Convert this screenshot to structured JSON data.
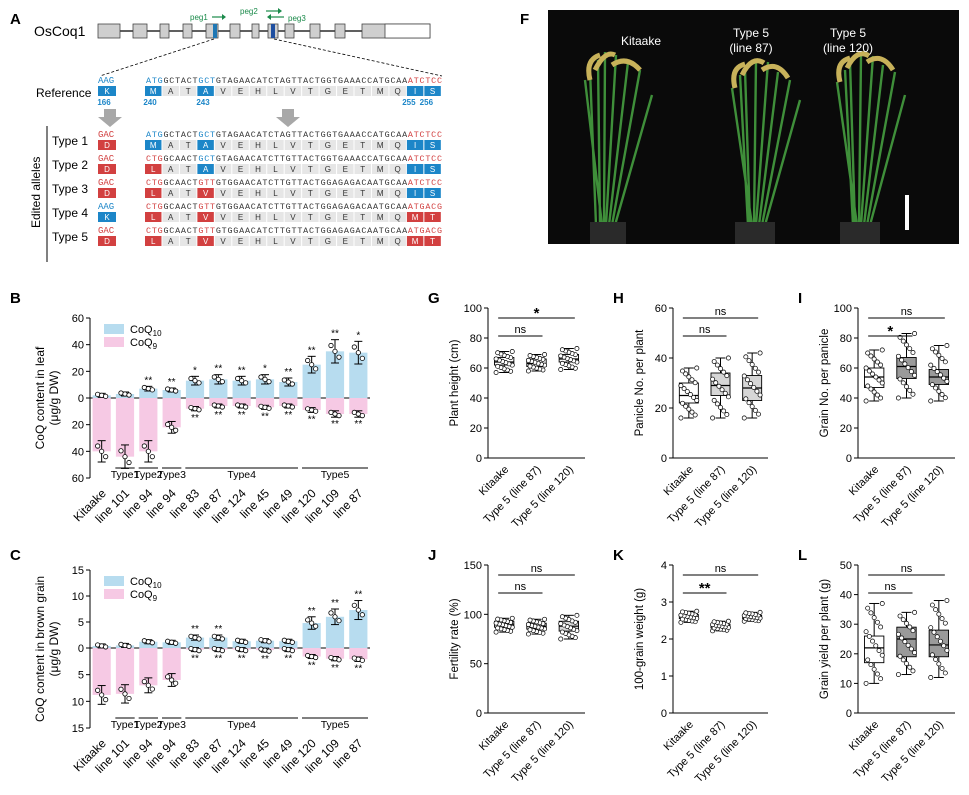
{
  "panel_letters": [
    "A",
    "B",
    "C",
    "F",
    "G",
    "H",
    "I",
    "J",
    "K",
    "L"
  ],
  "panel_a": {
    "gene": "OsCoq1",
    "primers": [
      "peg1",
      "peg2",
      "peg3"
    ],
    "reference_label": "Reference",
    "edited_label": "Edited alleles",
    "dna_sequence": "ATGGCTACTGCTGTAGAACATCTAGTTACTGGTGAAACCATGCAAATCTCC",
    "amino_acids": [
      "M",
      "A",
      "T",
      "A",
      "V",
      "E",
      "H",
      "L",
      "V",
      "T",
      "G",
      "E",
      "T",
      "M",
      "Q",
      "I",
      "S"
    ],
    "reference": {
      "codon166": "AAG",
      "aa166": "K",
      "dna": "ATGGCTACTGCTGTAGAACATCTAGTTACTGGTGAAACCATGCAAATCTCC",
      "aa": [
        "M",
        "A",
        "T",
        "A",
        "V",
        "E",
        "H",
        "L",
        "V",
        "T",
        "G",
        "E",
        "T",
        "M",
        "Q",
        "I",
        "S"
      ],
      "positions": [
        "166",
        "240",
        "243",
        "255",
        "256"
      ]
    },
    "types": [
      {
        "label": "Type 1",
        "codon": "GAC",
        "aa_first": "D",
        "dna": "ATGGCTACTGCTGTAGAACATCTAGTTACTGGTGAAACCATGCAAATCTCC",
        "aa": [
          "M",
          "A",
          "T",
          "A",
          "V",
          "E",
          "H",
          "L",
          "V",
          "T",
          "G",
          "E",
          "T",
          "M",
          "Q",
          "I",
          "S"
        ]
      },
      {
        "label": "Type 2",
        "codon": "GAC",
        "aa_first": "D",
        "dna": "CTGGCAACTGCTGTAGAACATCTTGTTACTGGTGAAACCATGCAAATCTCC",
        "aa": [
          "L",
          "A",
          "T",
          "A",
          "V",
          "E",
          "H",
          "L",
          "V",
          "T",
          "G",
          "E",
          "T",
          "M",
          "Q",
          "I",
          "S"
        ]
      },
      {
        "label": "Type 3",
        "codon": "GAC",
        "aa_first": "D",
        "dna": "CTGGCAACTGTTGTGGAACATCTTGTTACTGGAGAGACAATGCAAATCTCC",
        "aa": [
          "L",
          "A",
          "T",
          "V",
          "V",
          "E",
          "H",
          "L",
          "V",
          "T",
          "G",
          "E",
          "T",
          "M",
          "Q",
          "I",
          "S"
        ]
      },
      {
        "label": "Type 4",
        "codon": "AAG",
        "aa_first": "K",
        "dna": "CTGGCAACTGTTGTGGAACATCTTGTTACTGGAGAGACAATGCAAATGACG",
        "aa": [
          "L",
          "A",
          "T",
          "V",
          "V",
          "E",
          "H",
          "L",
          "V",
          "T",
          "G",
          "E",
          "T",
          "M",
          "Q",
          "M",
          "T"
        ]
      },
      {
        "label": "Type 5",
        "codon": "GAC",
        "aa_first": "D",
        "dna": "CTGGCAACTGTTGTGGAACATCTTGTTACTGGAGAGACAATGCAAATGACG",
        "aa": [
          "L",
          "A",
          "T",
          "V",
          "V",
          "E",
          "H",
          "L",
          "V",
          "T",
          "G",
          "E",
          "T",
          "M",
          "Q",
          "M",
          "T"
        ]
      }
    ]
  },
  "panel_f": {
    "labels": [
      "Kitaake",
      "Type 5\n(line 87)",
      "Type 5\n(line 120)"
    ]
  },
  "chart_data": [
    {
      "id": "B",
      "type": "bar",
      "ylabel": "CoQ content in leaf (μg/g DW)",
      "legend": [
        "CoQ10",
        "CoQ9"
      ],
      "ticks_up": [
        "0",
        "20",
        "40",
        "60"
      ],
      "ticks_down": [
        "20",
        "40",
        "60"
      ],
      "categories": [
        "Kitaake",
        "line 101",
        "line 94",
        "line 94",
        "line 83",
        "line 87",
        "line 124",
        "line 45",
        "line 49",
        "line 120",
        "line 109",
        "line 87"
      ],
      "groups": [
        {
          "label": "Type1",
          "from": 1,
          "to": 1
        },
        {
          "label": "Type2",
          "from": 2,
          "to": 2
        },
        {
          "label": "Type3",
          "from": 3,
          "to": 3
        },
        {
          "label": "Type4",
          "from": 4,
          "to": 8
        },
        {
          "label": "Type5",
          "from": 9,
          "to": 11
        }
      ],
      "series": [
        {
          "name": "CoQ10",
          "values": [
            2,
            3,
            7,
            6,
            13,
            14,
            13,
            14,
            12,
            25,
            35,
            34
          ]
        },
        {
          "name": "CoQ9",
          "values": [
            40,
            44,
            40,
            22,
            8,
            6,
            6,
            7,
            6,
            9,
            12,
            12
          ]
        }
      ],
      "sig_up": [
        "",
        "",
        "**",
        "**",
        "*",
        "**",
        "**",
        "*",
        "**",
        "**",
        "**",
        "*"
      ],
      "sig_down": [
        "",
        "",
        "",
        "",
        "**",
        "**",
        "**",
        "**",
        "**",
        "**",
        "**",
        "**"
      ],
      "yrange_up": [
        0,
        60
      ],
      "yrange_down": [
        0,
        60
      ]
    },
    {
      "id": "C",
      "type": "bar",
      "ylabel": "CoQ content in brown grain (μg/g DW)",
      "legend": [
        "CoQ10",
        "CoQ9"
      ],
      "ticks_up": [
        "0",
        "5",
        "10",
        "15"
      ],
      "ticks_down": [
        "5",
        "10",
        "15"
      ],
      "categories": [
        "Kitaake",
        "line 101",
        "line 94",
        "line 94",
        "line 83",
        "line 87",
        "line 124",
        "line 45",
        "line 49",
        "line 120",
        "line 109",
        "line 87"
      ],
      "groups": [
        {
          "label": "Type1",
          "from": 1,
          "to": 1
        },
        {
          "label": "Type2",
          "from": 2,
          "to": 2
        },
        {
          "label": "Type3",
          "from": 3,
          "to": 3
        },
        {
          "label": "Type4",
          "from": 4,
          "to": 8
        },
        {
          "label": "Type5",
          "from": 9,
          "to": 11
        }
      ],
      "series": [
        {
          "name": "CoQ10",
          "values": [
            0.4,
            0.5,
            1.2,
            1.1,
            2.0,
            2.0,
            1.3,
            1.4,
            1.3,
            4.8,
            6.0,
            7.3
          ]
        },
        {
          "name": "CoQ9",
          "values": [
            8.8,
            8.6,
            7.0,
            6.0,
            0.3,
            0.3,
            0.3,
            0.4,
            0.3,
            1.6,
            2.0,
            2.1
          ]
        }
      ],
      "sig_up": [
        "",
        "",
        "",
        "",
        "**",
        "**",
        "",
        "",
        "",
        "**",
        "**",
        "**"
      ],
      "sig_down": [
        "",
        "",
        "",
        "",
        "**",
        "**",
        "**",
        "**",
        "**",
        "**",
        "**",
        "**"
      ],
      "yrange_up": [
        0,
        15
      ],
      "yrange_down": [
        0,
        15
      ]
    },
    {
      "id": "G",
      "type": "box",
      "ylabel": "Plant height (cm)",
      "ylim": [
        0,
        100
      ],
      "ticks": [
        "0",
        "20",
        "40",
        "60",
        "80",
        "100"
      ],
      "categories": [
        "Kitaake",
        "Type 5 (line 87)",
        "Type 5 (line 120)"
      ],
      "boxes": [
        {
          "min": 57,
          "q1": 62,
          "median": 64,
          "q3": 67,
          "max": 71
        },
        {
          "min": 58,
          "q1": 61,
          "median": 63,
          "q3": 66,
          "max": 69
        },
        {
          "min": 59,
          "q1": 64,
          "median": 66,
          "q3": 69,
          "max": 73
        }
      ],
      "fill": [
        "#ffffff",
        "#ffffff",
        "#ffffff"
      ],
      "sig": [
        {
          "from": 0,
          "to": 1,
          "label": "ns",
          "level": "low"
        },
        {
          "from": 0,
          "to": 2,
          "label": "*",
          "level": "high"
        }
      ]
    },
    {
      "id": "H",
      "type": "box",
      "ylabel": "Panicle No. per plant",
      "ylim": [
        0,
        60
      ],
      "ticks": [
        "0",
        "20",
        "40",
        "60"
      ],
      "categories": [
        "Kitaake",
        "Type 5 (line 87)",
        "Type 5 (line 120)"
      ],
      "boxes": [
        {
          "min": 16,
          "q1": 22,
          "median": 25,
          "q3": 30,
          "max": 36
        },
        {
          "min": 16,
          "q1": 25,
          "median": 29,
          "q3": 34,
          "max": 40
        },
        {
          "min": 16,
          "q1": 23,
          "median": 28,
          "q3": 33,
          "max": 42
        }
      ],
      "fill": [
        "#ffffff",
        "#d6d6d6",
        "#d6d6d6"
      ],
      "sig": [
        {
          "from": 0,
          "to": 1,
          "label": "ns",
          "level": "low"
        },
        {
          "from": 0,
          "to": 2,
          "label": "ns",
          "level": "high"
        }
      ]
    },
    {
      "id": "I",
      "type": "box",
      "ylabel": "Grain No. per panicle",
      "ylim": [
        0,
        100
      ],
      "ticks": [
        "0",
        "20",
        "40",
        "60",
        "80",
        "100"
      ],
      "categories": [
        "Kitaake",
        "Type 5 (line 87)",
        "Type 5 (line 120)"
      ],
      "boxes": [
        {
          "min": 38,
          "q1": 47,
          "median": 54,
          "q3": 60,
          "max": 72
        },
        {
          "min": 40,
          "q1": 53,
          "median": 61,
          "q3": 67,
          "max": 83
        },
        {
          "min": 38,
          "q1": 49,
          "median": 54,
          "q3": 59,
          "max": 75
        }
      ],
      "fill": [
        "#ffffff",
        "#9a9a9a",
        "#9a9a9a"
      ],
      "sig": [
        {
          "from": 0,
          "to": 1,
          "label": "*",
          "level": "low"
        },
        {
          "from": 0,
          "to": 2,
          "label": "ns",
          "level": "high"
        }
      ]
    },
    {
      "id": "J",
      "type": "box",
      "ylabel": "Fertility rate (%)",
      "ylim": [
        0,
        150
      ],
      "ticks": [
        "0",
        "50",
        "100",
        "150"
      ],
      "categories": [
        "Kitaake",
        "Type 5 (line 87)",
        "Type 5 (line 120)"
      ],
      "boxes": [
        {
          "min": 82,
          "q1": 87,
          "median": 90,
          "q3": 93,
          "max": 96
        },
        {
          "min": 80,
          "q1": 85,
          "median": 88,
          "q3": 91,
          "max": 95
        },
        {
          "min": 75,
          "q1": 83,
          "median": 88,
          "q3": 93,
          "max": 99
        }
      ],
      "fill": [
        "#ffffff",
        "#d6d6d6",
        "#d6d6d6"
      ],
      "sig": [
        {
          "from": 0,
          "to": 1,
          "label": "ns",
          "level": "low"
        },
        {
          "from": 0,
          "to": 2,
          "label": "ns",
          "level": "high"
        }
      ]
    },
    {
      "id": "K",
      "type": "box",
      "ylabel": "100-grain weight (g)",
      "ylim": [
        0,
        4
      ],
      "ticks": [
        "0",
        "1",
        "2",
        "3",
        "4"
      ],
      "categories": [
        "Kitaake",
        "Type 5 (line 87)",
        "Type 5 (line 120)"
      ],
      "boxes": [
        {
          "min": 2.45,
          "q1": 2.55,
          "median": 2.6,
          "q3": 2.66,
          "max": 2.75
        },
        {
          "min": 2.22,
          "q1": 2.3,
          "median": 2.34,
          "q3": 2.4,
          "max": 2.48
        },
        {
          "min": 2.48,
          "q1": 2.55,
          "median": 2.6,
          "q3": 2.64,
          "max": 2.72
        }
      ],
      "fill": [
        "#ffffff",
        "#ffffff",
        "#ffffff"
      ],
      "sig": [
        {
          "from": 0,
          "to": 1,
          "label": "**",
          "level": "low"
        },
        {
          "from": 0,
          "to": 2,
          "label": "ns",
          "level": "high"
        }
      ]
    },
    {
      "id": "L",
      "type": "box",
      "ylabel": "Grain yield per plant (g)",
      "ylim": [
        0,
        50
      ],
      "ticks": [
        "0",
        "10",
        "20",
        "30",
        "40",
        "50"
      ],
      "categories": [
        "Kitaake",
        "Type 5 (line 87)",
        "Type 5 (line 120)"
      ],
      "boxes": [
        {
          "min": 10,
          "q1": 17,
          "median": 22,
          "q3": 26,
          "max": 37
        },
        {
          "min": 13,
          "q1": 19,
          "median": 25,
          "q3": 29,
          "max": 34
        },
        {
          "min": 12,
          "q1": 19,
          "median": 23,
          "q3": 28,
          "max": 38
        }
      ],
      "fill": [
        "#ffffff",
        "#9a9a9a",
        "#9a9a9a"
      ],
      "sig": [
        {
          "from": 0,
          "to": 1,
          "label": "ns",
          "level": "low"
        },
        {
          "from": 0,
          "to": 2,
          "label": "ns",
          "level": "high"
        }
      ]
    }
  ]
}
